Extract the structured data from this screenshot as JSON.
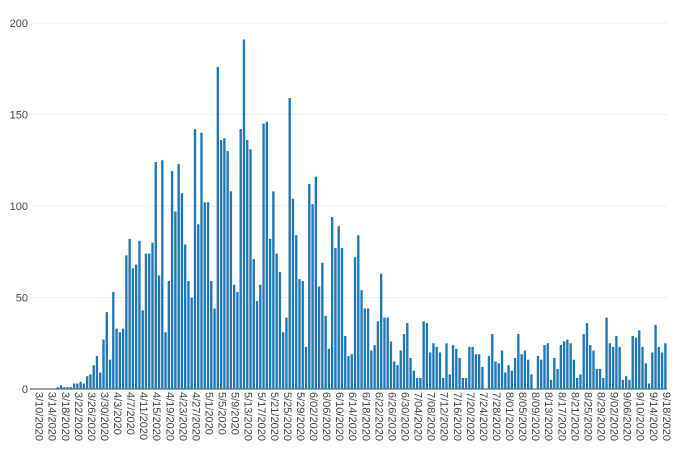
{
  "chart_data": {
    "type": "bar",
    "title": "",
    "xlabel": "",
    "ylabel": "",
    "ylim": [
      0,
      200
    ],
    "y_ticks": [
      0,
      50,
      100,
      150,
      200
    ],
    "grid": true,
    "bar_color": "#1f77b4",
    "start_date": "2020-03-10",
    "x_tick_labels": [
      "3/10/2020",
      "3/14/2020",
      "3/18/2020",
      "3/22/2020",
      "3/26/2020",
      "3/30/2020",
      "4/3/2020",
      "4/7/2020",
      "4/11/2020",
      "4/15/2020",
      "4/19/2020",
      "4/23/2020",
      "4/27/2020",
      "5/1/2020",
      "5/5/2020",
      "5/9/2020",
      "5/13/2020",
      "5/17/2020",
      "5/21/2020",
      "5/25/2020",
      "5/29/2020",
      "6/02/2020",
      "6/06/2020",
      "6/10/2020",
      "6/14/2020",
      "6/18/2020",
      "6/22/2020",
      "6/26/2020",
      "6/30/2020",
      "7/04/2020",
      "7/08/2020",
      "7/12/2020",
      "7/16/2020",
      "7/20/2020",
      "7/24/2020",
      "7/28/2020",
      "8/01/2020",
      "8/05/2020",
      "8/09/2020",
      "8/13/2020",
      "8/17/2020",
      "8/21/2020",
      "8/25/2020",
      "8/29/2020",
      "9/02/2020",
      "9/06/2020",
      "9/10/2020",
      "9/14/2020",
      "9/18/2020"
    ],
    "values": [
      0,
      0,
      0,
      0,
      0,
      0,
      0,
      0,
      1,
      2,
      1,
      1,
      1,
      3,
      3,
      4,
      3,
      7,
      8,
      13,
      18,
      9,
      27,
      42,
      16,
      53,
      33,
      31,
      33,
      73,
      82,
      66,
      68,
      81,
      43,
      74,
      74,
      80,
      124,
      62,
      125,
      31,
      59,
      119,
      97,
      123,
      107,
      79,
      59,
      50,
      142,
      90,
      140,
      102,
      102,
      59,
      44,
      176,
      136,
      137,
      130,
      108,
      57,
      53,
      142,
      191,
      136,
      131,
      71,
      48,
      57,
      145,
      146,
      82,
      108,
      74,
      64,
      31,
      39,
      159,
      104,
      84,
      60,
      59,
      23,
      112,
      101,
      116,
      56,
      69,
      40,
      22,
      94,
      77,
      89,
      77,
      29,
      18,
      19,
      72,
      84,
      54,
      44,
      44,
      21,
      24,
      37,
      63,
      39,
      39,
      26,
      15,
      13,
      21,
      30,
      36,
      17,
      10,
      6,
      6,
      37,
      36,
      20,
      25,
      23,
      20,
      6,
      25,
      8,
      24,
      22,
      17,
      6,
      6,
      23,
      23,
      19,
      19,
      12,
      0,
      18,
      30,
      15,
      14,
      21,
      9,
      13,
      10,
      17,
      30,
      19,
      21,
      16,
      8,
      0,
      18,
      16,
      24,
      25,
      5,
      17,
      11,
      24,
      26,
      27,
      25,
      16,
      6,
      8,
      30,
      36,
      24,
      21,
      11,
      11,
      6,
      39,
      25,
      23,
      29,
      23,
      5,
      7,
      5,
      29,
      28,
      32,
      23,
      14,
      3,
      20,
      35,
      23,
      20,
      25
    ]
  }
}
